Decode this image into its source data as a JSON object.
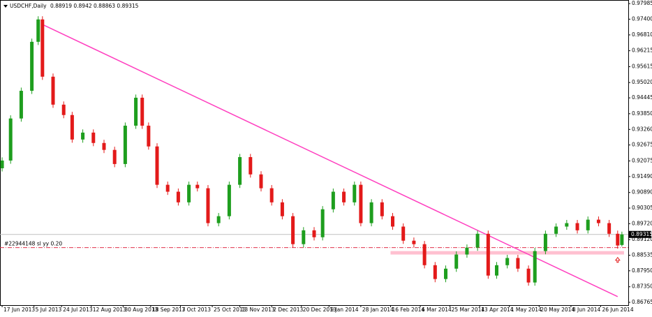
{
  "chart_data": {
    "type": "candlestick",
    "symbol": "USDCHF,Daily",
    "x": [
      1,
      5,
      10,
      15,
      18,
      20,
      25,
      30,
      34,
      39,
      44,
      49,
      54,
      59,
      64,
      67,
      70,
      74,
      79,
      84,
      89,
      93,
      98,
      103,
      108,
      113,
      118,
      123,
      128,
      133,
      138,
      143,
      148,
      152,
      157,
      162,
      167,
      170,
      175,
      180,
      185,
      190,
      195,
      200,
      205,
      210,
      215,
      220,
      225,
      230,
      234,
      239,
      244,
      249,
      252,
      257,
      262,
      267,
      272,
      277,
      282,
      287,
      291,
      293
    ],
    "open": [
      0.918,
      0.9209,
      0.9367,
      0.9471,
      0.9655,
      0.9739,
      0.9524,
      0.9419,
      0.938,
      0.9288,
      0.9314,
      0.9275,
      0.9249,
      0.9196,
      0.934,
      0.9445,
      0.934,
      0.9262,
      0.9118,
      0.9092,
      0.9052,
      0.9118,
      0.9105,
      0.8974,
      0.9,
      0.9118,
      0.9222,
      0.9157,
      0.9105,
      0.9052,
      0.9,
      0.8895,
      0.8947,
      0.8921,
      0.9026,
      0.9092,
      0.9052,
      0.9118,
      0.8974,
      0.9052,
      0.9,
      0.8961,
      0.8908,
      0.8895,
      0.8816,
      0.8764,
      0.8803,
      0.8856,
      0.8882,
      0.8934,
      0.8777,
      0.8816,
      0.8843,
      0.8803,
      0.8751,
      0.8869,
      0.8934,
      0.8961,
      0.8974,
      0.8947,
      0.8987,
      0.8974,
      0.8934,
      0.88919
    ],
    "high": [
      0.9221,
      0.9379,
      0.9483,
      0.9667,
      0.9751,
      0.9751,
      0.9536,
      0.9431,
      0.9392,
      0.9326,
      0.9326,
      0.9287,
      0.9261,
      0.9352,
      0.9457,
      0.9457,
      0.9352,
      0.9274,
      0.913,
      0.9104,
      0.913,
      0.913,
      0.9117,
      0.9012,
      0.913,
      0.9234,
      0.9234,
      0.9169,
      0.9117,
      0.9064,
      0.9012,
      0.8959,
      0.8959,
      0.9038,
      0.9104,
      0.9104,
      0.913,
      0.913,
      0.9064,
      0.9064,
      0.9012,
      0.8973,
      0.892,
      0.8907,
      0.8828,
      0.8815,
      0.8868,
      0.8894,
      0.8946,
      0.8946,
      0.8828,
      0.8855,
      0.8855,
      0.8815,
      0.8881,
      0.8946,
      0.8973,
      0.8986,
      0.8986,
      0.8999,
      0.8999,
      0.8986,
      0.8946,
      0.8942
    ],
    "low": [
      0.9168,
      0.9197,
      0.9355,
      0.9459,
      0.9643,
      0.9512,
      0.9407,
      0.9368,
      0.9276,
      0.9276,
      0.9263,
      0.9237,
      0.9184,
      0.9184,
      0.9328,
      0.9328,
      0.925,
      0.9106,
      0.908,
      0.904,
      0.904,
      0.9093,
      0.8962,
      0.8962,
      0.8988,
      0.9106,
      0.9145,
      0.9093,
      0.904,
      0.8988,
      0.8883,
      0.8883,
      0.8909,
      0.8909,
      0.9014,
      0.904,
      0.904,
      0.8962,
      0.8962,
      0.8988,
      0.8949,
      0.8896,
      0.8883,
      0.8804,
      0.8752,
      0.8752,
      0.8791,
      0.8844,
      0.887,
      0.8765,
      0.8765,
      0.8804,
      0.8791,
      0.8739,
      0.8739,
      0.8857,
      0.8922,
      0.8949,
      0.8935,
      0.8935,
      0.8962,
      0.8922,
      0.8878,
      0.88863
    ],
    "close": [
      0.9209,
      0.9367,
      0.9471,
      0.9655,
      0.9739,
      0.9524,
      0.9419,
      0.938,
      0.9288,
      0.9314,
      0.9275,
      0.9249,
      0.9196,
      0.934,
      0.9445,
      0.934,
      0.9262,
      0.9118,
      0.9092,
      0.9052,
      0.9118,
      0.9105,
      0.8974,
      0.9,
      0.9118,
      0.9222,
      0.9157,
      0.9105,
      0.9052,
      0.9,
      0.8895,
      0.8947,
      0.8921,
      0.9026,
      0.9092,
      0.9052,
      0.9118,
      0.8974,
      0.9052,
      0.9,
      0.8961,
      0.8908,
      0.8895,
      0.8816,
      0.8764,
      0.8803,
      0.8856,
      0.8882,
      0.8934,
      0.8777,
      0.8816,
      0.8843,
      0.8803,
      0.8751,
      0.8869,
      0.8934,
      0.8961,
      0.8974,
      0.8947,
      0.8987,
      0.8974,
      0.8934,
      0.889,
      0.89315
    ],
    "up_color": "#1e9e1e",
    "down_color": "#e31a1a",
    "xlim": [
      0,
      296
    ],
    "xticks": [
      {
        "value": 1,
        "label": "17 Jun 2013"
      },
      {
        "value": 16,
        "label": "5 Jul 2013"
      },
      {
        "value": 29,
        "label": "24 Jul 2013"
      },
      {
        "value": 43,
        "label": "12 Aug 2013"
      },
      {
        "value": 58,
        "label": "30 Aug 2013"
      },
      {
        "value": 71,
        "label": "18 Sep 2013"
      },
      {
        "value": 85,
        "label": "7 Oct 2013"
      },
      {
        "value": 100,
        "label": "25 Oct 2013"
      },
      {
        "value": 113,
        "label": "13 Nov 2013"
      },
      {
        "value": 128,
        "label": "2 Dec 2013"
      },
      {
        "value": 142,
        "label": "20 Dec 2013"
      },
      {
        "value": 155,
        "label": "9 Jan 2014"
      },
      {
        "value": 170,
        "label": "28 Jan 2014"
      },
      {
        "value": 184,
        "label": "16 Feb 2014"
      },
      {
        "value": 198,
        "label": "6 Mar 2014"
      },
      {
        "value": 212,
        "label": "25 Mar 2014"
      },
      {
        "value": 226,
        "label": "13 Apr 2014"
      },
      {
        "value": 240,
        "label": "1 May 2014"
      },
      {
        "value": 254,
        "label": "20 May 2014"
      },
      {
        "value": 269,
        "label": "8 Jun 2014"
      },
      {
        "value": 283,
        "label": "26 Jun 2014"
      }
    ],
    "ylim": [
      0.8666,
      0.9812
    ],
    "yticks": [
      0.97985,
      {
        "value": 0.974,
        "label": "0.97400"
      },
      {
        "value": 0.9681,
        "label": "0.96810"
      },
      0.96215,
      0.95615,
      {
        "value": 0.9502,
        "label": "0.95020"
      },
      0.94445,
      {
        "value": 0.9385,
        "label": "0.93850"
      },
      {
        "value": 0.9326,
        "label": "0.93260"
      },
      0.92675,
      0.92075,
      {
        "value": 0.9149,
        "label": "0.91490"
      },
      {
        "value": 0.9089,
        "label": "0.90890"
      },
      0.90305,
      {
        "value": 0.8972,
        "label": "0.89720"
      },
      {
        "value": 0.8912,
        "label": "0.89120"
      },
      0.88535,
      {
        "value": 0.8795,
        "label": "0.87950"
      },
      {
        "value": 0.8735,
        "label": "0.87350"
      },
      0.86765
    ],
    "trendline": {
      "color": "#ff40c0",
      "x": [
        20,
        291
      ],
      "y": [
        0.972,
        0.8698
      ]
    },
    "order_line": {
      "label": "#22944148 sl yy 0.20",
      "value": 0.8882,
      "color": "#e0304a"
    },
    "zone": {
      "color": "#ffc0d0",
      "x": [
        184,
        294
      ],
      "y": [
        0.8856,
        0.8869
      ]
    }
  }
}
